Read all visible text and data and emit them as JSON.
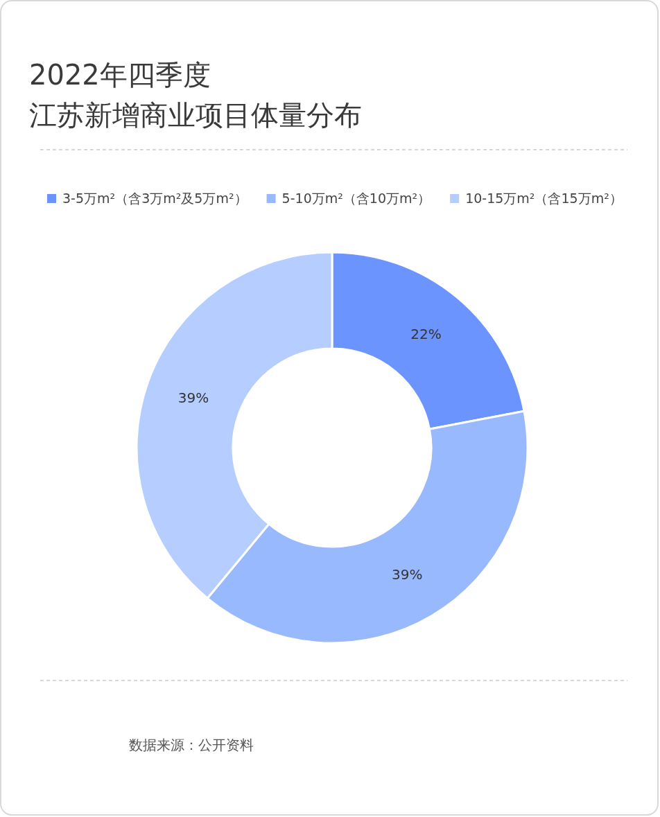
{
  "chart_data": {
    "type": "donut",
    "title": "2022年四季度",
    "subtitle": "江苏新增商业项目体量分布",
    "categories": [
      "3-5万m²（含3万m²及5万m²）",
      "5-10万m²（含10万m²）",
      "10-15万m²（含15万m²）"
    ],
    "values": [
      22,
      39,
      39
    ],
    "colors": [
      "#6b94ff",
      "#99b9ff",
      "#b5cdff"
    ],
    "value_labels": [
      "22%",
      "39%",
      "39%"
    ],
    "legend": "top",
    "annotations": [
      "数据来源：公开资料"
    ]
  }
}
